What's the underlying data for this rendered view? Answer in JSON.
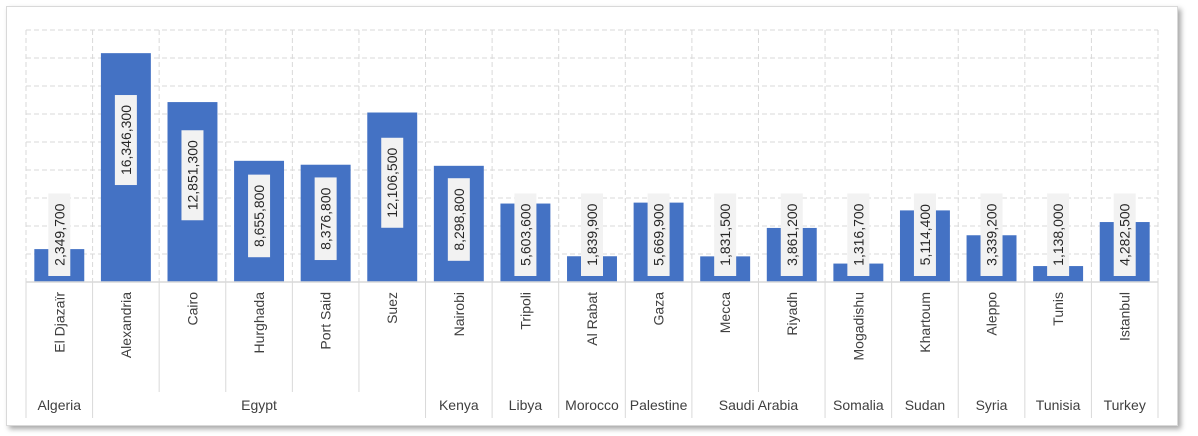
{
  "colors": {
    "bar": "#4472c4",
    "label_bg": "#f2f2f2",
    "label_text": "#262626",
    "axis_text": "#404040",
    "grid": "#d9d9d9"
  },
  "chart_data": {
    "type": "bar",
    "title": "",
    "xlabel": "",
    "ylabel": "",
    "ylim": [
      0,
      18000000
    ],
    "grid": true,
    "legend": "none",
    "categories": [
      {
        "city": "El Djazaïr",
        "country": "Algeria"
      },
      {
        "city": "Alexandria",
        "country": "Egypt"
      },
      {
        "city": "Cairo",
        "country": "Egypt"
      },
      {
        "city": "Hurghada",
        "country": "Egypt"
      },
      {
        "city": "Port Said",
        "country": "Egypt"
      },
      {
        "city": "Suez",
        "country": "Egypt"
      },
      {
        "city": "Nairobi",
        "country": "Kenya"
      },
      {
        "city": "Tripoli",
        "country": "Libya"
      },
      {
        "city": "Al Rabat",
        "country": "Morocco"
      },
      {
        "city": "Gaza",
        "country": "Palestine"
      },
      {
        "city": "Mecca",
        "country": "Saudi Arabia"
      },
      {
        "city": "Riyadh",
        "country": "Saudi Arabia"
      },
      {
        "city": "Mogadishu",
        "country": "Somalia"
      },
      {
        "city": "Khartoum",
        "country": "Sudan"
      },
      {
        "city": "Aleppo",
        "country": "Syria"
      },
      {
        "city": "Tunis",
        "country": "Tunisia"
      },
      {
        "city": "Istanbul",
        "country": "Turkey"
      }
    ],
    "values": [
      2349700,
      16346300,
      12851300,
      8655800,
      8376800,
      12106500,
      8298800,
      5603600,
      1839900,
      5669900,
      1831500,
      3861200,
      1316700,
      5114400,
      3339200,
      1138000,
      4282500
    ],
    "data_labels": [
      "2,349,700",
      "16,346,300",
      "12,851,300",
      "8,655,800",
      "8,376,800",
      "12,106,500",
      "8,298,800",
      "5,603,600",
      "1,839,900",
      "5,669,900",
      "1,831,500",
      "3,861,200",
      "1,316,700",
      "5,114,400",
      "3,339,200",
      "1,138,000",
      "4,282,500"
    ],
    "groups": [
      {
        "name": "Algeria",
        "count": 1
      },
      {
        "name": "Egypt",
        "count": 5
      },
      {
        "name": "Kenya",
        "count": 1
      },
      {
        "name": "Libya",
        "count": 1
      },
      {
        "name": "Morocco",
        "count": 1
      },
      {
        "name": "Palestine",
        "count": 1
      },
      {
        "name": "Saudi Arabia",
        "count": 2
      },
      {
        "name": "Somalia",
        "count": 1
      },
      {
        "name": "Sudan",
        "count": 1
      },
      {
        "name": "Syria",
        "count": 1
      },
      {
        "name": "Tunisia",
        "count": 1
      },
      {
        "name": "Turkey",
        "count": 1
      }
    ]
  }
}
